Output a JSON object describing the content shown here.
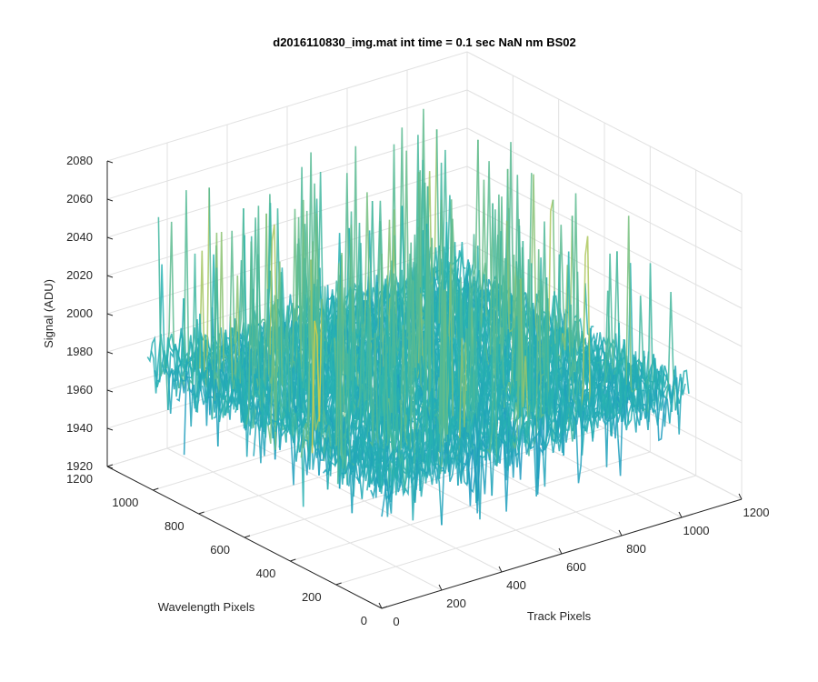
{
  "chart_data": {
    "type": "surface",
    "title": "d2016110830_img.mat int time = 0.1 sec  NaN nm BS02",
    "xlabel": "Track Pixels",
    "ylabel": "Wavelength Pixels",
    "zlabel": "Signal (ADU)",
    "xlim": [
      0,
      1200
    ],
    "ylim": [
      0,
      1200
    ],
    "zlim": [
      1920,
      2080
    ],
    "x_ticks": [
      "0",
      "200",
      "400",
      "600",
      "800",
      "1000",
      "1200"
    ],
    "y_ticks": [
      "0",
      "200",
      "400",
      "600",
      "800",
      "1000",
      "1200"
    ],
    "z_ticks": [
      "1920",
      "1940",
      "1960",
      "1980",
      "2000",
      "2020",
      "2040",
      "2060",
      "2080"
    ],
    "grid": true,
    "colormap": "parula",
    "data_extent": {
      "x": [
        0,
        1024
      ],
      "y": [
        0,
        1024
      ]
    },
    "z_typical_range": [
      1945,
      2030
    ],
    "z_mean": 1985,
    "z_peak_max": 2075,
    "colors": {
      "low": "#0a72d8",
      "mid": "#28b3b0",
      "high": "#e3cf3a",
      "axis": "#262626",
      "grid": "#e1e1e1"
    }
  }
}
